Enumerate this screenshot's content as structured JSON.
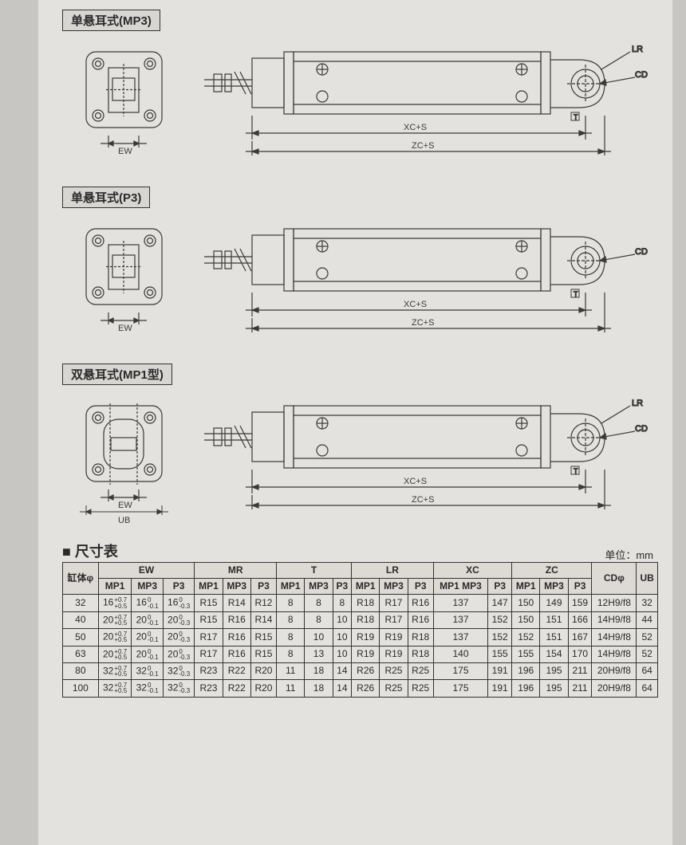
{
  "sections": [
    {
      "label": "单悬耳式(MP3)",
      "flange_dim": "EW",
      "side": {
        "lr": true,
        "cd": true,
        "t": true,
        "xc": "XC+S",
        "zc": "ZC+S"
      },
      "ub": false
    },
    {
      "label": "单悬耳式(P3)",
      "flange_dim": "EW",
      "side": {
        "lr": false,
        "cd": true,
        "t": true,
        "xc": "XC+S",
        "zc": "ZC+S"
      },
      "ub": false
    },
    {
      "label": "双悬耳式(MP1型)",
      "flange_dim": "EW",
      "side": {
        "lr": true,
        "cd": true,
        "t": true,
        "xc": "XC+S",
        "zc": "ZC+S"
      },
      "ub": true
    }
  ],
  "table": {
    "title": "■ 尺寸表",
    "unit": "单位：mm",
    "header_groups": [
      {
        "label": "缸体φ",
        "span": 1,
        "subs": []
      },
      {
        "label": "EW",
        "span": 3,
        "subs": [
          "MP1",
          "MP3",
          "P3"
        ]
      },
      {
        "label": "MR",
        "span": 3,
        "subs": [
          "MP1",
          "MP3",
          "P3"
        ]
      },
      {
        "label": "T",
        "span": 3,
        "subs": [
          "MP1",
          "MP3",
          "P3"
        ]
      },
      {
        "label": "LR",
        "span": 3,
        "subs": [
          "MP1",
          "MP3",
          "P3"
        ]
      },
      {
        "label": "XC",
        "span": 2,
        "subs": [
          "MP1 MP3",
          "P3"
        ]
      },
      {
        "label": "ZC",
        "span": 3,
        "subs": [
          "MP1",
          "MP3",
          "P3"
        ]
      },
      {
        "label": "CDφ",
        "span": 1,
        "subs": []
      },
      {
        "label": "UB",
        "span": 1,
        "subs": []
      }
    ],
    "rows": [
      {
        "bore": "32",
        "ew": [
          {
            "v": "16",
            "tol": [
              "+0.7",
              "+0.5"
            ]
          },
          {
            "v": "16",
            "tol": [
              "0",
              "-0.1"
            ]
          },
          {
            "v": "16",
            "tol": [
              "0",
              "-0.3"
            ]
          }
        ],
        "mr": [
          "R15",
          "R14",
          "R12"
        ],
        "t": [
          "8",
          "8",
          "8"
        ],
        "lr": [
          "R18",
          "R17",
          "R16"
        ],
        "xc": [
          "137",
          "147"
        ],
        "zc": [
          "150",
          "149",
          "159"
        ],
        "cd": "12H9/f8",
        "ub": "32"
      },
      {
        "bore": "40",
        "ew": [
          {
            "v": "20",
            "tol": [
              "+0.7",
              "+0.5"
            ]
          },
          {
            "v": "20",
            "tol": [
              "0",
              "-0.1"
            ]
          },
          {
            "v": "20",
            "tol": [
              "0",
              "-0.3"
            ]
          }
        ],
        "mr": [
          "R15",
          "R16",
          "R14"
        ],
        "t": [
          "8",
          "8",
          "10"
        ],
        "lr": [
          "R18",
          "R17",
          "R16"
        ],
        "xc": [
          "137",
          "152"
        ],
        "zc": [
          "150",
          "151",
          "166"
        ],
        "cd": "14H9/f8",
        "ub": "44"
      },
      {
        "bore": "50",
        "ew": [
          {
            "v": "20",
            "tol": [
              "+0.7",
              "+0.5"
            ]
          },
          {
            "v": "20",
            "tol": [
              "0",
              "-0.1"
            ]
          },
          {
            "v": "20",
            "tol": [
              "0",
              "-0.3"
            ]
          }
        ],
        "mr": [
          "R17",
          "R16",
          "R15"
        ],
        "t": [
          "8",
          "10",
          "10"
        ],
        "lr": [
          "R19",
          "R19",
          "R18"
        ],
        "xc": [
          "137",
          "152"
        ],
        "zc": [
          "152",
          "151",
          "167"
        ],
        "cd": "14H9/f8",
        "ub": "52"
      },
      {
        "bore": "63",
        "ew": [
          {
            "v": "20",
            "tol": [
              "+0.7",
              "+0.5"
            ]
          },
          {
            "v": "20",
            "tol": [
              "0",
              "-0.1"
            ]
          },
          {
            "v": "20",
            "tol": [
              "0",
              "-0.3"
            ]
          }
        ],
        "mr": [
          "R17",
          "R16",
          "R15"
        ],
        "t": [
          "8",
          "13",
          "10"
        ],
        "lr": [
          "R19",
          "R19",
          "R18"
        ],
        "xc": [
          "140",
          "155"
        ],
        "zc": [
          "155",
          "154",
          "170"
        ],
        "cd": "14H9/f8",
        "ub": "52"
      },
      {
        "bore": "80",
        "ew": [
          {
            "v": "32",
            "tol": [
              "+0.7",
              "+0.5"
            ]
          },
          {
            "v": "32",
            "tol": [
              "0",
              "-0.1"
            ]
          },
          {
            "v": "32",
            "tol": [
              "0",
              "-0.3"
            ]
          }
        ],
        "mr": [
          "R23",
          "R22",
          "R20"
        ],
        "t": [
          "11",
          "18",
          "14"
        ],
        "lr": [
          "R26",
          "R25",
          "R25"
        ],
        "xc": [
          "175",
          "191"
        ],
        "zc": [
          "196",
          "195",
          "211"
        ],
        "cd": "20H9/f8",
        "ub": "64"
      },
      {
        "bore": "100",
        "ew": [
          {
            "v": "32",
            "tol": [
              "+0.7",
              "+0.5"
            ]
          },
          {
            "v": "32",
            "tol": [
              "0",
              "-0.1"
            ]
          },
          {
            "v": "32",
            "tol": [
              "0",
              "-0.3"
            ]
          }
        ],
        "mr": [
          "R23",
          "R22",
          "R20"
        ],
        "t": [
          "11",
          "18",
          "14"
        ],
        "lr": [
          "R26",
          "R25",
          "R25"
        ],
        "xc": [
          "175",
          "191"
        ],
        "zc": [
          "196",
          "195",
          "211"
        ],
        "cd": "20H9/f8",
        "ub": "64"
      }
    ]
  },
  "style": {
    "line": "#3a3a3a",
    "thin": "#555",
    "bg": "#e4e2de"
  }
}
